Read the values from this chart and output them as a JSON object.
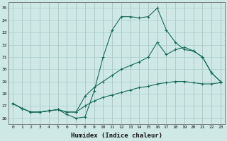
{
  "xlabel": "Humidex (Indice chaleur)",
  "ylabel": "",
  "xlim": [
    -0.5,
    23.5
  ],
  "ylim": [
    25.5,
    35.5
  ],
  "xticks": [
    0,
    1,
    2,
    3,
    4,
    5,
    6,
    7,
    8,
    9,
    10,
    11,
    12,
    13,
    14,
    15,
    16,
    17,
    18,
    19,
    20,
    21,
    22,
    23
  ],
  "yticks": [
    26,
    27,
    28,
    29,
    30,
    31,
    32,
    33,
    34,
    35
  ],
  "bg_color": "#cde8e5",
  "grid_color": "#aacfcc",
  "line_color": "#1a6b5a",
  "line1_x": [
    0,
    1,
    2,
    3,
    4,
    5,
    6,
    7,
    8,
    9,
    10,
    11,
    12,
    13,
    14,
    15,
    16,
    17,
    18,
    19,
    20,
    21,
    22,
    23
  ],
  "line1_y": [
    27.2,
    26.8,
    26.5,
    26.5,
    26.6,
    26.7,
    26.3,
    26.0,
    26.1,
    28.2,
    31.0,
    33.2,
    34.3,
    34.3,
    34.2,
    34.3,
    35.0,
    33.2,
    32.2,
    31.6,
    31.5,
    31.0,
    29.7,
    29.0
  ],
  "line2_x": [
    0,
    1,
    2,
    3,
    4,
    5,
    6,
    7,
    8,
    9,
    10,
    11,
    12,
    13,
    14,
    15,
    16,
    17,
    18,
    19,
    20,
    21,
    22,
    23
  ],
  "line2_y": [
    27.2,
    26.8,
    26.5,
    26.5,
    26.6,
    26.7,
    26.5,
    26.5,
    27.8,
    28.5,
    29.0,
    29.5,
    30.0,
    30.3,
    30.6,
    31.0,
    32.2,
    31.2,
    31.6,
    31.8,
    31.5,
    31.0,
    29.7,
    29.0
  ],
  "line3_x": [
    0,
    1,
    2,
    3,
    4,
    5,
    6,
    7,
    8,
    9,
    10,
    11,
    12,
    13,
    14,
    15,
    16,
    17,
    18,
    19,
    20,
    21,
    22,
    23
  ],
  "line3_y": [
    27.2,
    26.8,
    26.5,
    26.5,
    26.6,
    26.7,
    26.5,
    26.5,
    27.0,
    27.4,
    27.7,
    27.9,
    28.1,
    28.3,
    28.5,
    28.6,
    28.8,
    28.9,
    29.0,
    29.0,
    28.9,
    28.8,
    28.8,
    28.9
  ]
}
